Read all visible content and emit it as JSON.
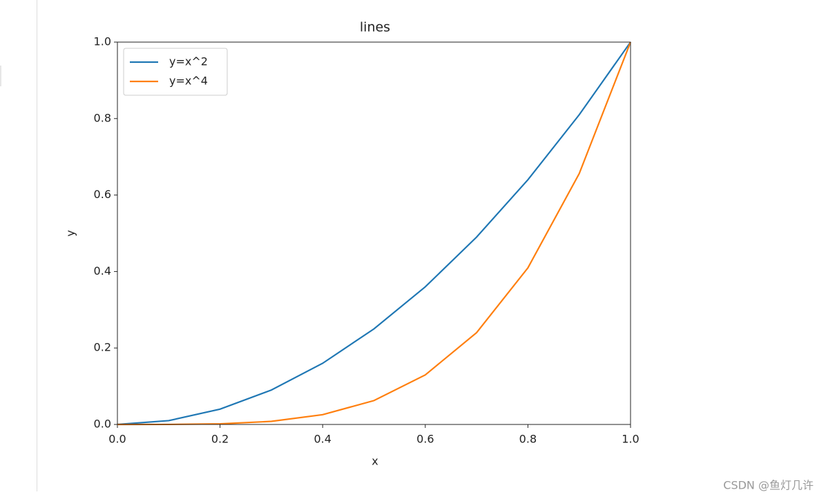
{
  "chart_data": {
    "type": "line",
    "title": "lines",
    "xlabel": "x",
    "ylabel": "y",
    "x": [
      0,
      0.1,
      0.2,
      0.3,
      0.4,
      0.5,
      0.6,
      0.7,
      0.8,
      0.9,
      1
    ],
    "series": [
      {
        "name": "y=x^2",
        "color": "#1f77b4",
        "values": [
          0,
          0.01,
          0.04,
          0.09,
          0.16,
          0.25,
          0.36,
          0.49,
          0.64,
          0.81,
          1
        ]
      },
      {
        "name": "y=x^4",
        "color": "#ff7f0e",
        "values": [
          0,
          0.0001,
          0.0016,
          0.0081,
          0.0256,
          0.0625,
          0.1296,
          0.2401,
          0.4096,
          0.6561,
          1
        ]
      }
    ],
    "xlim": [
      0,
      1
    ],
    "ylim": [
      0,
      1
    ],
    "xticks": [
      {
        "value": 0,
        "label": "0.0"
      },
      0.2,
      0.4,
      0.6,
      0.8,
      {
        "value": 1,
        "label": "1.0"
      }
    ],
    "yticks": [
      {
        "value": 0,
        "label": "0.0"
      },
      0.2,
      0.4,
      0.6,
      0.8,
      {
        "value": 1,
        "label": "1.0"
      }
    ],
    "legend": "upper left",
    "grid": false
  },
  "watermark": "CSDN @鱼灯几许"
}
